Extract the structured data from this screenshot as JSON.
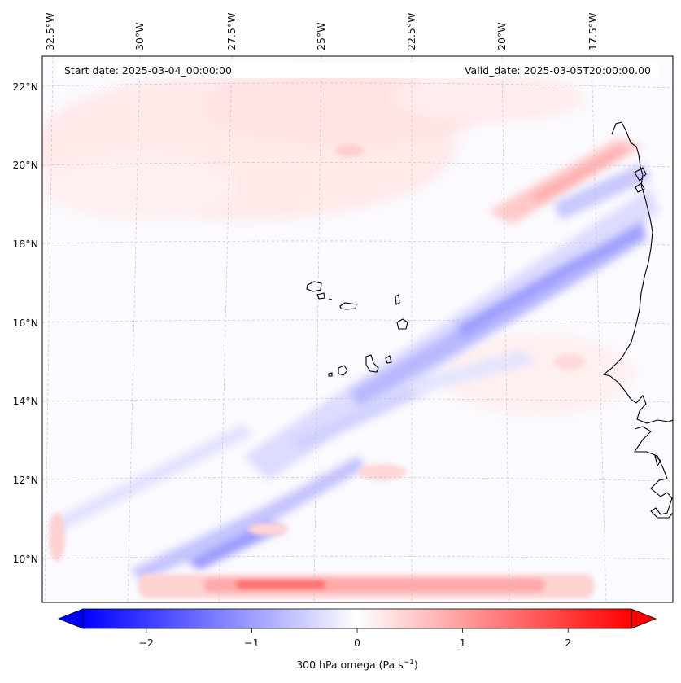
{
  "header": {
    "start_date": "Start date: 2025-03-04_00:00:00",
    "valid_date": "Valid_date: 2025-03-05T20:00:00.00"
  },
  "axes": {
    "lon_labels": [
      "32.5°W",
      "30°W",
      "27.5°W",
      "25°W",
      "22.5°W",
      "20°W",
      "17.5°W"
    ],
    "lat_labels": [
      "22°N",
      "20°N",
      "18°N",
      "16°N",
      "14°N",
      "12°N",
      "10°N"
    ]
  },
  "colorbar": {
    "ticks": [
      "−2",
      "−1",
      "0",
      "1",
      "2"
    ],
    "label": "300 hPa omega (Pa s",
    "label_sup": "−1",
    "label_end": ")",
    "vmin": -2.6,
    "vmax": 2.6,
    "low_color": "#0000ff",
    "mid_color": "#ffffff",
    "high_color": "#ff0000"
  },
  "map": {
    "field": "300 hPa omega",
    "islands": "Cape Verde",
    "coast": "West Africa"
  }
}
